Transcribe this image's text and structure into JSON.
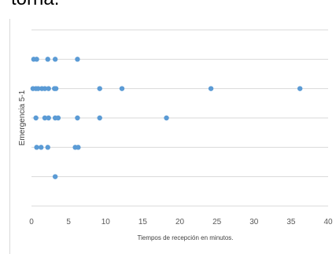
{
  "header": {
    "partial_text": "torna."
  },
  "chart_data": {
    "type": "scatter",
    "title": "",
    "xlabel": "Tiempos de recepción en minutos.",
    "ylabel": "Emergencia 5-1",
    "xlim": [
      0,
      40
    ],
    "ylim": [
      0,
      6
    ],
    "x_ticks": [
      "0",
      "5",
      "10",
      "15",
      "20",
      "25",
      "30",
      "35",
      "40"
    ],
    "grid": true,
    "color": "#5b9bd5",
    "points": [
      {
        "x": 0.3,
        "y": 5
      },
      {
        "x": 0.7,
        "y": 5
      },
      {
        "x": 2.2,
        "y": 5
      },
      {
        "x": 3.2,
        "y": 5
      },
      {
        "x": 6.2,
        "y": 5
      },
      {
        "x": 0.2,
        "y": 4
      },
      {
        "x": 0.6,
        "y": 4
      },
      {
        "x": 0.9,
        "y": 4
      },
      {
        "x": 1.4,
        "y": 4
      },
      {
        "x": 1.8,
        "y": 4
      },
      {
        "x": 2.3,
        "y": 4
      },
      {
        "x": 3.1,
        "y": 4
      },
      {
        "x": 3.3,
        "y": 4
      },
      {
        "x": 9.2,
        "y": 4
      },
      {
        "x": 12.2,
        "y": 4
      },
      {
        "x": 24.2,
        "y": 4
      },
      {
        "x": 36.2,
        "y": 4
      },
      {
        "x": 0.6,
        "y": 3
      },
      {
        "x": 1.8,
        "y": 3
      },
      {
        "x": 2.3,
        "y": 3
      },
      {
        "x": 3.2,
        "y": 3
      },
      {
        "x": 3.6,
        "y": 3
      },
      {
        "x": 6.2,
        "y": 3
      },
      {
        "x": 9.2,
        "y": 3
      },
      {
        "x": 18.2,
        "y": 3
      },
      {
        "x": 0.7,
        "y": 2
      },
      {
        "x": 1.3,
        "y": 2
      },
      {
        "x": 2.2,
        "y": 2
      },
      {
        "x": 5.9,
        "y": 2
      },
      {
        "x": 6.3,
        "y": 2
      },
      {
        "x": 3.2,
        "y": 1
      }
    ]
  }
}
